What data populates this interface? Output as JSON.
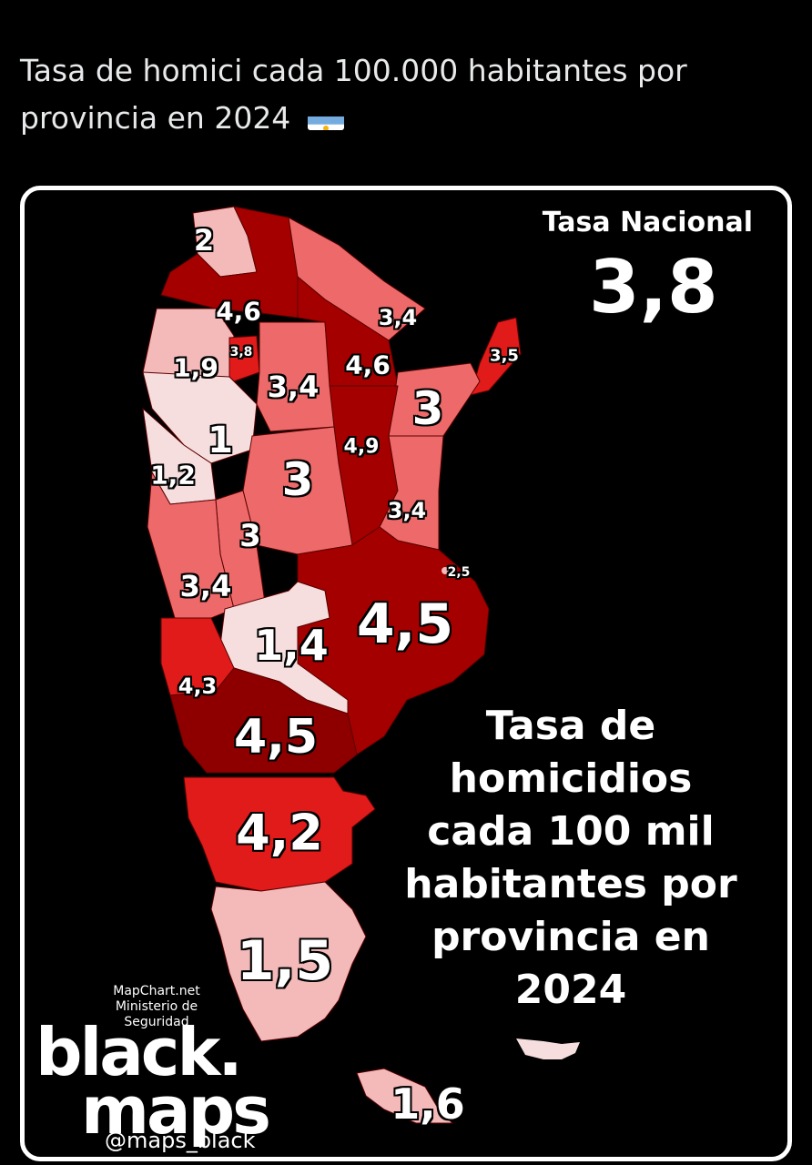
{
  "post": {
    "text": "Tasa de homici cada 100.000 habitantes por provincia en 2024",
    "flag_icon": "argentina-flag-icon"
  },
  "map": {
    "national_label": "Tasa Nacional",
    "national_value": "3,8",
    "title": "Tasa de homicidios cada 100 mil habitantes por provincia en 2024",
    "credits": [
      "MapChart.net",
      "Ministerio de",
      "Seguridad"
    ],
    "logo_line1": "black.",
    "logo_line2": "maps",
    "handle": "@maps_black",
    "colors": {
      "very_light": "#f6dede",
      "light": "#f4b9b9",
      "medium": "#ee6a6a",
      "red": "#e11a1a",
      "dark": "#a40000",
      "darker": "#8e0000"
    },
    "rates": [
      {
        "value": "2",
        "level": "light"
      },
      {
        "value": "4,6",
        "level": "dark"
      },
      {
        "value": "3,4",
        "level": "medium"
      },
      {
        "value": "1,9",
        "level": "light"
      },
      {
        "value": "3,8",
        "level": "red"
      },
      {
        "value": "3,4",
        "level": "medium"
      },
      {
        "value": "4,6",
        "level": "dark"
      },
      {
        "value": "3,5",
        "level": "red"
      },
      {
        "value": "3",
        "level": "medium"
      },
      {
        "value": "1",
        "level": "very_light"
      },
      {
        "value": "4,9",
        "level": "dark"
      },
      {
        "value": "1,2",
        "level": "very_light"
      },
      {
        "value": "3",
        "level": "medium"
      },
      {
        "value": "3,4",
        "level": "medium"
      },
      {
        "value": "3",
        "level": "medium"
      },
      {
        "value": "2,5",
        "level": "light"
      },
      {
        "value": "3,4",
        "level": "medium"
      },
      {
        "value": "4,5",
        "level": "dark"
      },
      {
        "value": "1,4",
        "level": "very_light"
      },
      {
        "value": "4,3",
        "level": "red"
      },
      {
        "value": "4,5",
        "level": "darker"
      },
      {
        "value": "4,2",
        "level": "red"
      },
      {
        "value": "1,5",
        "level": "light"
      },
      {
        "value": "1,6",
        "level": "light"
      }
    ]
  }
}
